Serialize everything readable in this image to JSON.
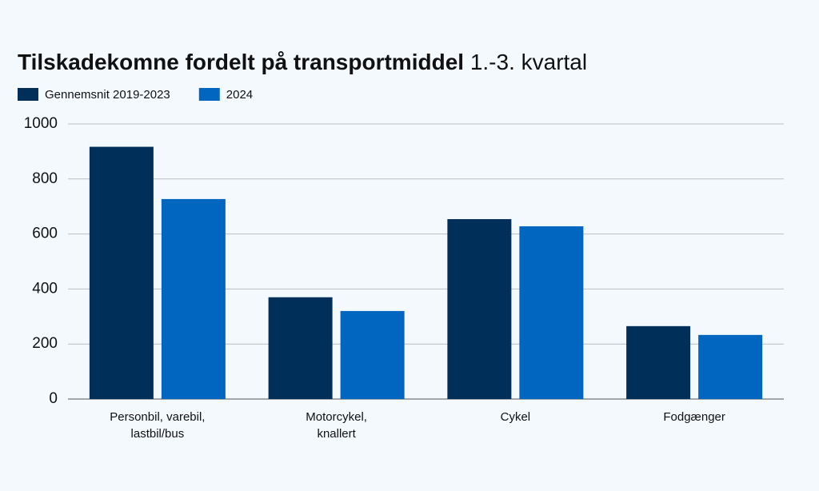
{
  "chart_data": {
    "type": "bar",
    "title": "Tilskadekomne fordelt på transportmiddel",
    "subtitle": "1.-3. kvartal",
    "categories": [
      "Personbil, varebil,\nlastbil/bus",
      "Motorcykel,\nknallert",
      "Cykel",
      "Fodgænger"
    ],
    "series": [
      {
        "name": "Gennemsnit 2019-2023",
        "color": "#00305a",
        "values": [
          917,
          370,
          654,
          265
        ]
      },
      {
        "name": "2024",
        "color": "#0066bf",
        "values": [
          727,
          320,
          628,
          233
        ]
      }
    ],
    "ylim": [
      0,
      1000
    ],
    "yticks": [
      0,
      200,
      400,
      600,
      800,
      1000
    ],
    "grid": true,
    "legend": "top-left"
  }
}
